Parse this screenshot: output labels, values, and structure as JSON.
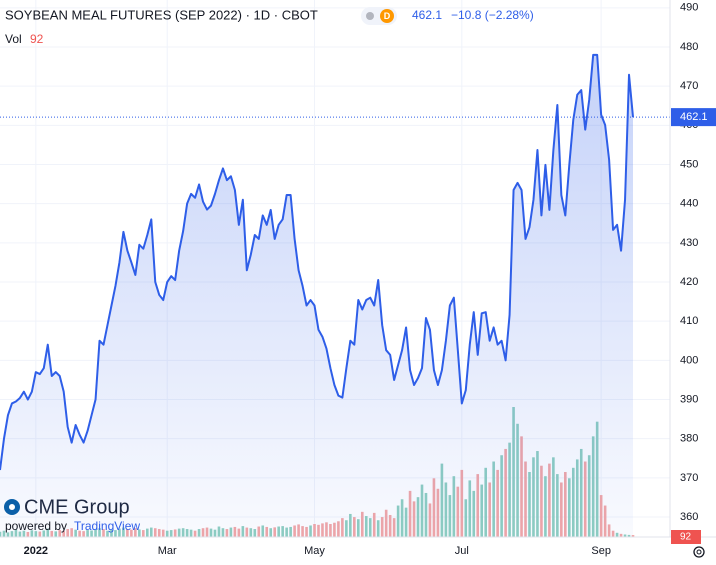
{
  "chart_data": {
    "type": "line",
    "title": "SOYBEAN MEAL FUTURES (SEP 2022) · 1D · CBOT",
    "badge": "D",
    "change": "−10.8 (−2.28%)",
    "volume_label": "Vol",
    "logo": "CME Group",
    "powered_by": "powered by",
    "powered_brand": "TradingView",
    "color": "#2e5ee8",
    "volume_up_color": "#8fcfc1",
    "volume_down_color": "#f2a7a7",
    "ylim": [
      354.9,
      492
    ],
    "yticks": [
      360,
      370,
      380,
      390,
      400,
      410,
      420,
      430,
      440,
      450,
      460,
      470,
      480,
      490
    ],
    "categories": [
      null,
      null,
      null,
      null,
      null,
      null,
      null,
      null,
      null,
      "2022",
      null,
      null,
      null,
      null,
      null,
      null,
      null,
      null,
      null,
      null,
      null,
      null,
      null,
      null,
      null,
      null,
      null,
      null,
      null,
      null,
      null,
      null,
      null,
      null,
      null,
      null,
      null,
      null,
      null,
      null,
      null,
      null,
      "Mar",
      null,
      null,
      null,
      null,
      null,
      null,
      null,
      null,
      null,
      null,
      null,
      null,
      null,
      null,
      null,
      null,
      null,
      null,
      null,
      null,
      null,
      null,
      null,
      null,
      null,
      null,
      null,
      null,
      null,
      null,
      null,
      null,
      null,
      null,
      null,
      null,
      "May",
      null,
      null,
      null,
      null,
      null,
      null,
      null,
      null,
      null,
      null,
      null,
      null,
      null,
      null,
      null,
      null,
      null,
      null,
      null,
      null,
      null,
      null,
      null,
      null,
      null,
      null,
      null,
      null,
      null,
      null,
      null,
      null,
      null,
      null,
      null,
      null,
      "Jul",
      null,
      null,
      null,
      null,
      null,
      null,
      null,
      null,
      null,
      null,
      null,
      null,
      null,
      null,
      null,
      null,
      null,
      null,
      null,
      null,
      null,
      null,
      null,
      null,
      null,
      null,
      null,
      null,
      null,
      null,
      null,
      null,
      null,
      null,
      "Sep",
      null,
      null,
      null,
      null,
      null,
      null,
      null,
      null
    ],
    "values": [
      372,
      380,
      386,
      389,
      389.5,
      390.4,
      392,
      390,
      392,
      397,
      396.5,
      398,
      404,
      396,
      397,
      396,
      392,
      383,
      379,
      383.5,
      381,
      379,
      382,
      386,
      390,
      405,
      404,
      409,
      414,
      419,
      425,
      432.8,
      428,
      425,
      421.8,
      429.5,
      428.5,
      432,
      436,
      420,
      416.7,
      415.4,
      420,
      421.5,
      420.5,
      428,
      433,
      440,
      442.5,
      441.5,
      444.9,
      440.5,
      438.5,
      439.5,
      442.5,
      446,
      449,
      446,
      447,
      443.5,
      434.6,
      441,
      423,
      427,
      432,
      431,
      437,
      434.6,
      438.4,
      431,
      434.6,
      436,
      442.2,
      442.2,
      431,
      423,
      419,
      414,
      415.4,
      414,
      407.8,
      406,
      403,
      398,
      393.7,
      391,
      390.5,
      398,
      405,
      404,
      415.4,
      413,
      415.4,
      416,
      414,
      420.5,
      409,
      402.6,
      401.4,
      395,
      398.8,
      402.6,
      408.4,
      397.5,
      393.7,
      395.5,
      398,
      410.8,
      407.8,
      397.5,
      393.7,
      397.5,
      405,
      414,
      416,
      402.6,
      389,
      392.4,
      404,
      412.3,
      401.4,
      412,
      412.3,
      405,
      408.4,
      404,
      405,
      400,
      411.6,
      443.5,
      445.3,
      443.5,
      431,
      434,
      441,
      453.7,
      437,
      449.9,
      438.4,
      453.7,
      465.2,
      442.2,
      437,
      449.9,
      461.4,
      467.8,
      469,
      458.9,
      466.5,
      478,
      478,
      462.7,
      460.1,
      451.2,
      433.3,
      434.6,
      428,
      441,
      472.9,
      462.1
    ],
    "volume": [
      250,
      300,
      220,
      280,
      350,
      260,
      300,
      240,
      320,
      280,
      260,
      310,
      400,
      290,
      270,
      330,
      300,
      380,
      420,
      350,
      300,
      280,
      330,
      310,
      360,
      420,
      380,
      300,
      350,
      330,
      400,
      450,
      380,
      350,
      420,
      360,
      330,
      400,
      450,
      420,
      380,
      350,
      300,
      330,
      360,
      400,
      420,
      380,
      350,
      300,
      380,
      420,
      450,
      400,
      350,
      500,
      420,
      380,
      450,
      480,
      400,
      520,
      450,
      420,
      380,
      500,
      550,
      480,
      420,
      460,
      500,
      520,
      450,
      480,
      550,
      600,
      520,
      480,
      550,
      620,
      580,
      650,
      700,
      620,
      680,
      750,
      900,
      800,
      1100,
      950,
      850,
      1200,
      1000,
      900,
      1150,
      800,
      950,
      1300,
      1050,
      900,
      1500,
      1800,
      1400,
      2200,
      1700,
      1900,
      2500,
      2100,
      1600,
      2800,
      2300,
      3500,
      2600,
      2000,
      2900,
      2400,
      3200,
      1800,
      2700,
      2200,
      3000,
      2500,
      3300,
      2600,
      3600,
      3200,
      3900,
      4200,
      4500,
      6200,
      5400,
      4800,
      3600,
      3100,
      3800,
      4100,
      3400,
      2900,
      3500,
      3800,
      3000,
      2600,
      3100,
      2800,
      3300,
      3700,
      4200,
      3600,
      3900,
      4800,
      5500,
      2000,
      1500,
      600,
      300,
      200,
      150,
      120,
      100,
      92
    ]
  }
}
